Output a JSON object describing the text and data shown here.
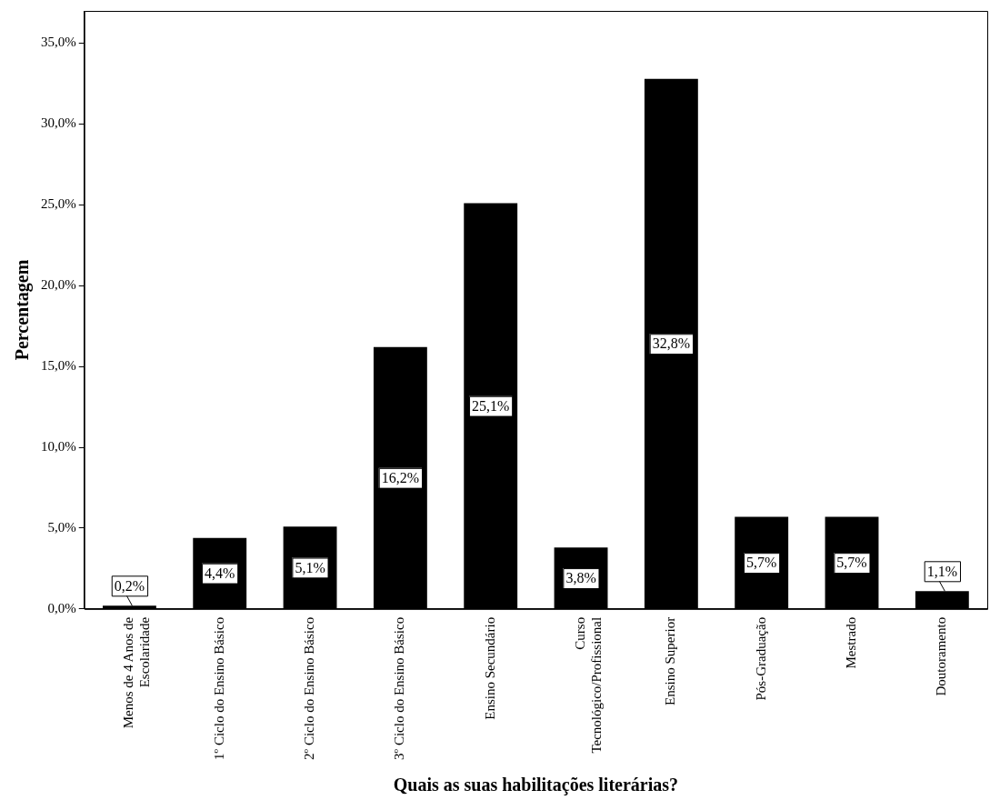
{
  "chart_data": {
    "type": "bar",
    "xlabel": "Quais as suas habilitações literárias?",
    "ylabel": "Percentagem",
    "categories": [
      "Menos de 4 Anos de Escolaridade",
      "1º Ciclo do Ensino Básico",
      "2º Ciclo do Ensino Básico",
      "3º Ciclo do Ensino Básico",
      "Ensino Secundário",
      "Curso Tecnológico/Profissional",
      "Ensino Superior",
      "Pós-Graduação",
      "Mestrado",
      "Doutoramento"
    ],
    "values": [
      0.2,
      4.4,
      5.1,
      16.2,
      25.1,
      3.8,
      32.8,
      5.7,
      5.7,
      1.1
    ],
    "value_labels": [
      "0,2%",
      "4,4%",
      "5,1%",
      "16,2%",
      "25,1%",
      "3,8%",
      "32,8%",
      "5,7%",
      "5,7%",
      "1,1%"
    ],
    "color": "#000000",
    "ylim": [
      0,
      37
    ],
    "yticks": [
      {
        "value": 0,
        "label": "0,0%"
      },
      {
        "value": 5,
        "label": "5,0%"
      },
      {
        "value": 10,
        "label": "10,0%"
      },
      {
        "value": 15,
        "label": "15,0%"
      },
      {
        "value": 20,
        "label": "20,0%"
      },
      {
        "value": 25,
        "label": "25,0%"
      },
      {
        "value": 30,
        "label": "30,0%"
      },
      {
        "value": 35,
        "label": "35,0%"
      }
    ],
    "grid": false,
    "legend": false
  }
}
